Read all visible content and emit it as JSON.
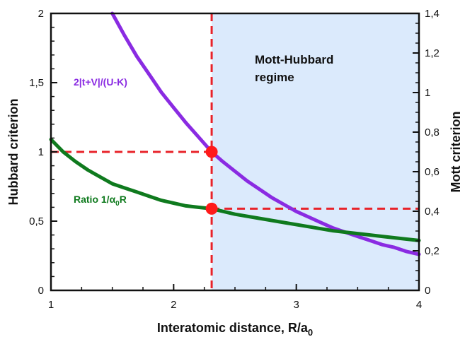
{
  "chart_data": {
    "type": "line",
    "xlabel": "Interatomic distance, R/a",
    "xlabel_sub": "0",
    "ylabel_left": "Hubbard criterion",
    "ylabel_right": "Mott criterion",
    "xlim": [
      1,
      4
    ],
    "ylim_left": [
      0,
      2
    ],
    "ylim_right": [
      0,
      1.4
    ],
    "x_ticks": [
      "1",
      "2",
      "3",
      "4"
    ],
    "y_left_ticks": [
      "0",
      "0,5",
      "1",
      "1,5",
      "2"
    ],
    "y_right_ticks": [
      "0",
      "0,2",
      "0,4",
      "0,6",
      "0,8",
      "1",
      "1,2",
      "1,4"
    ],
    "region": {
      "label_line1": "Mott-Hubbard",
      "label_line2": "regime",
      "x_start": 2.31,
      "x_end": 4,
      "color": "#dbeafc"
    },
    "series": [
      {
        "name": "2|t+V|/(U-K)",
        "axis": "left",
        "color": "#8a2be2",
        "x": [
          1.5,
          1.6,
          1.7,
          1.8,
          1.9,
          2.0,
          2.1,
          2.2,
          2.31,
          2.4,
          2.5,
          2.6,
          2.7,
          2.8,
          2.9,
          3.0,
          3.1,
          3.2,
          3.3,
          3.4,
          3.5,
          3.6,
          3.7,
          3.8,
          3.9,
          4.0
        ],
        "y": [
          2.0,
          1.84,
          1.69,
          1.56,
          1.43,
          1.32,
          1.21,
          1.11,
          1.0,
          0.93,
          0.86,
          0.79,
          0.73,
          0.67,
          0.62,
          0.57,
          0.53,
          0.49,
          0.45,
          0.42,
          0.39,
          0.36,
          0.33,
          0.31,
          0.28,
          0.26
        ]
      },
      {
        "name": "Ratio 1/α",
        "name_sub": "0",
        "name_suffix": "R",
        "axis": "left",
        "color": "#0f7a1e",
        "x": [
          1.0,
          1.1,
          1.2,
          1.3,
          1.4,
          1.5,
          1.6,
          1.7,
          1.8,
          1.9,
          2.0,
          2.1,
          2.2,
          2.31,
          2.5,
          2.7,
          2.9,
          3.1,
          3.3,
          3.5,
          3.7,
          3.9,
          4.0
        ],
        "y": [
          1.09,
          1.0,
          0.93,
          0.87,
          0.82,
          0.77,
          0.74,
          0.71,
          0.68,
          0.65,
          0.63,
          0.61,
          0.6,
          0.59,
          0.55,
          0.52,
          0.49,
          0.46,
          0.43,
          0.41,
          0.39,
          0.37,
          0.36
        ]
      }
    ],
    "reference_lines": [
      {
        "type": "vertical",
        "x": 2.31,
        "color": "#e8232a"
      },
      {
        "type": "horizontal",
        "y_left": 1.0,
        "x_from": 1,
        "x_to": 2.31,
        "color": "#e8232a"
      },
      {
        "type": "horizontal",
        "y_left": 0.59,
        "x_from": 2.31,
        "x_to": 4,
        "color": "#e8232a"
      }
    ],
    "markers": [
      {
        "x": 2.31,
        "y_left": 1.0,
        "color": "#ff1a1a"
      },
      {
        "x": 2.31,
        "y_left": 0.59,
        "color": "#ff1a1a"
      }
    ],
    "grid": false
  }
}
